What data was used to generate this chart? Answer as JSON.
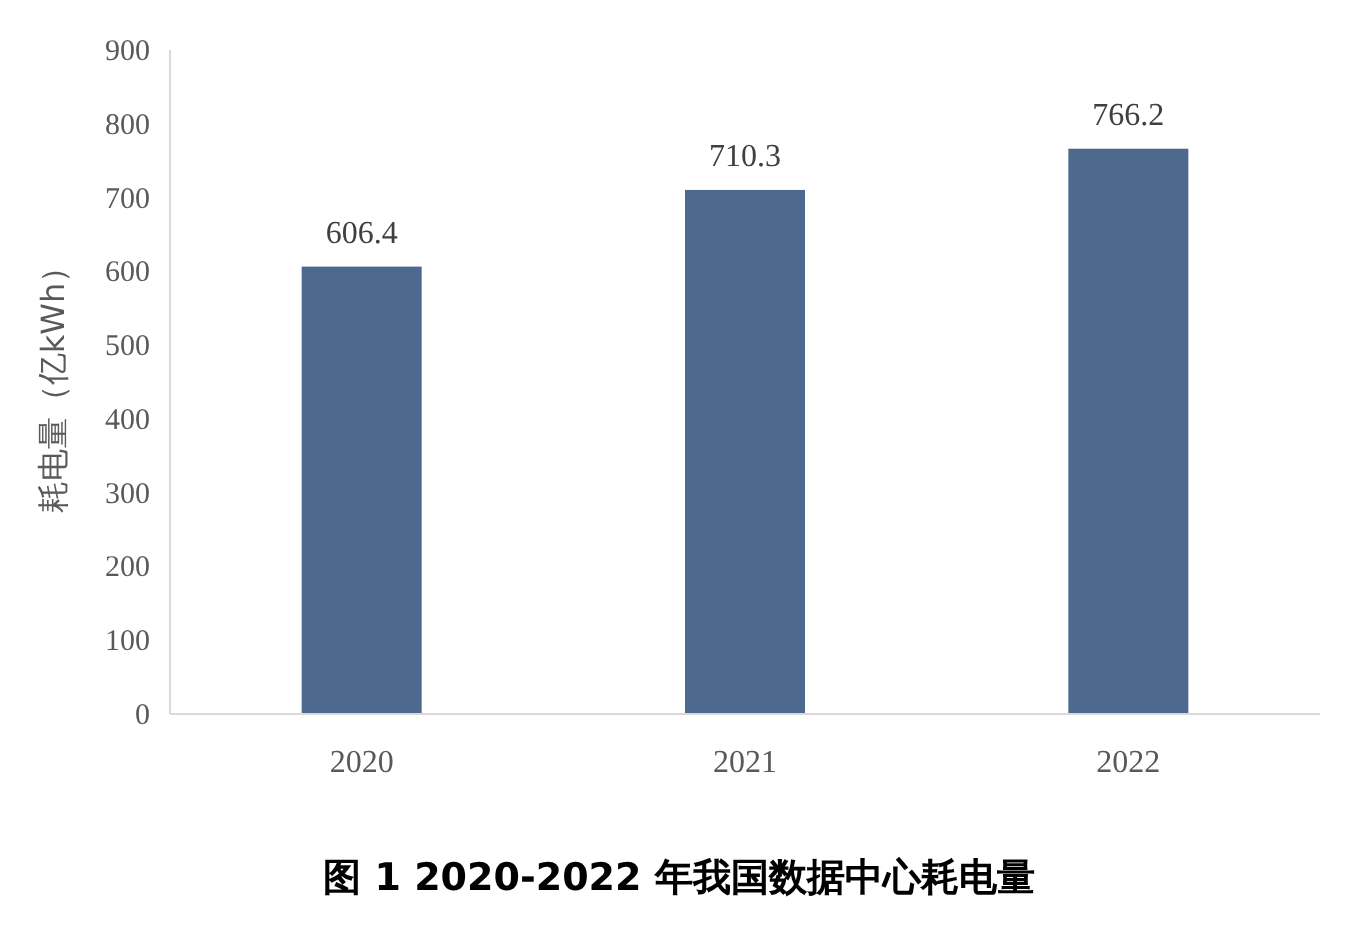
{
  "chart_data": {
    "type": "bar",
    "title": "图 1 2020-2022 年我国数据中心耗电量",
    "ylabel": "耗电量（亿kWh）",
    "categories": [
      "2020",
      "2021",
      "2022"
    ],
    "values": [
      606.4,
      710.3,
      766.2
    ],
    "color": "#4d6a8e",
    "ylim": [
      0,
      900
    ],
    "yticks": [
      0,
      100,
      200,
      300,
      400,
      500,
      600,
      700,
      800,
      900
    ],
    "data_labels": true
  }
}
